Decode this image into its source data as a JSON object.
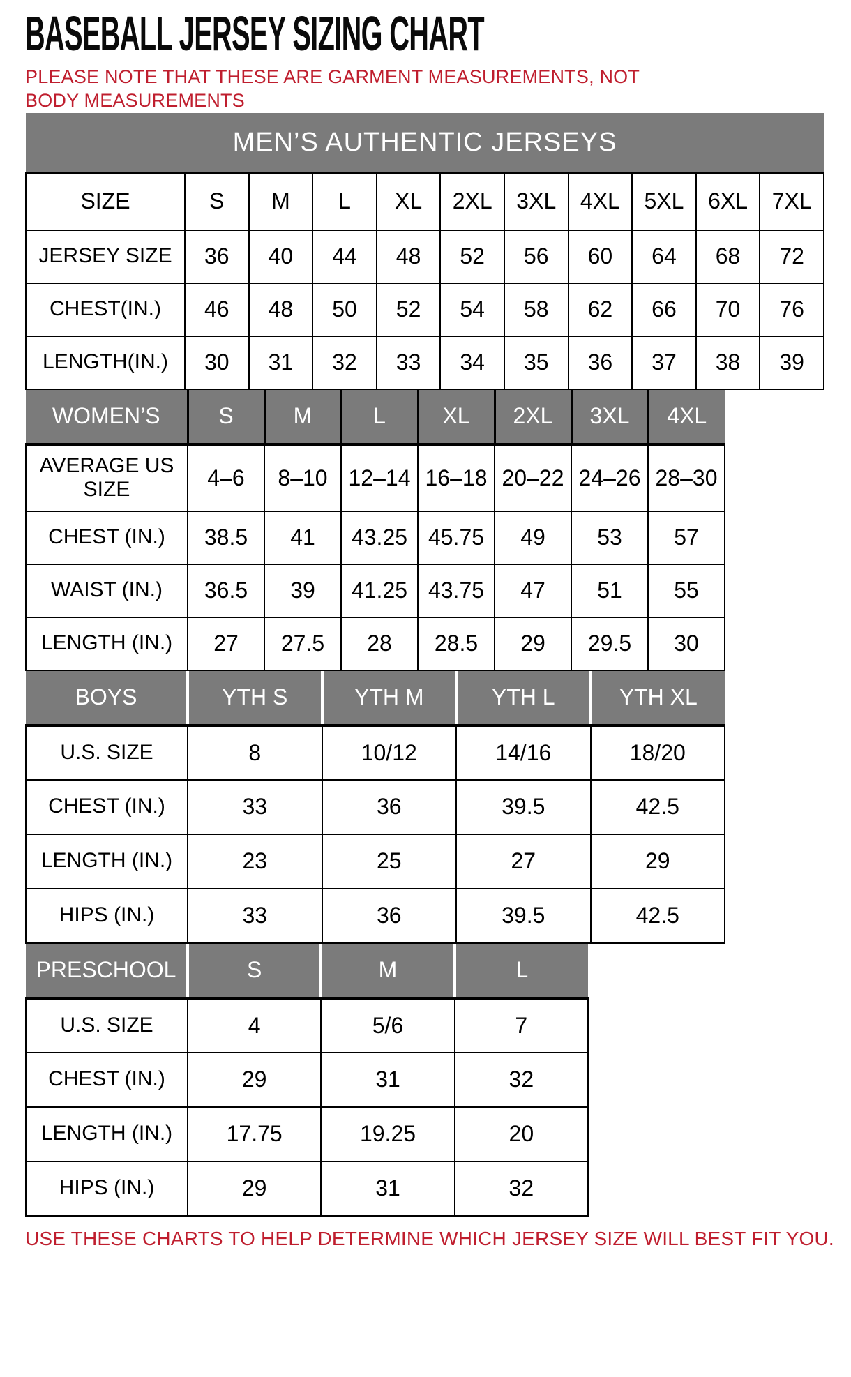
{
  "page": {
    "title": "BASEBALL JERSEY SIZING CHART",
    "note": "PLEASE NOTE THAT THESE ARE GARMENT MEASUREMENTS, NOT BODY MEASUREMENTS",
    "footer": "USE THESE CHARTS TO HELP DETERMINE WHICH JERSEY SIZE WILL BEST FIT YOU.",
    "colors": {
      "accent_red": "#bf1e2e",
      "header_gray": "#7b7b7b",
      "border_black": "#000000"
    }
  },
  "tables": {
    "mens": {
      "banner": "MEN’S AUTHENTIC JERSEYS",
      "header": {
        "label": "SIZE",
        "sizes": [
          "S",
          "M",
          "L",
          "XL",
          "2XL",
          "3XL",
          "4XL",
          "5XL",
          "6XL",
          "7XL"
        ]
      },
      "rows": [
        {
          "label": "JERSEY SIZE",
          "values": [
            "36",
            "40",
            "44",
            "48",
            "52",
            "56",
            "60",
            "64",
            "68",
            "72"
          ]
        },
        {
          "label": "CHEST(IN.)",
          "values": [
            "46",
            "48",
            "50",
            "52",
            "54",
            "58",
            "62",
            "66",
            "70",
            "76"
          ]
        },
        {
          "label": "LENGTH(IN.)",
          "values": [
            "30",
            "31",
            "32",
            "33",
            "34",
            "35",
            "36",
            "37",
            "38",
            "39"
          ]
        }
      ]
    },
    "womens": {
      "header": {
        "label": "WOMEN’S",
        "sizes": [
          "S",
          "M",
          "L",
          "XL",
          "2XL",
          "3XL",
          "4XL"
        ]
      },
      "rows": [
        {
          "label": "AVERAGE US SIZE",
          "values": [
            "4–6",
            "8–10",
            "12–14",
            "16–18",
            "20–22",
            "24–26",
            "28–30"
          ]
        },
        {
          "label": "CHEST (IN.)",
          "values": [
            "38.5",
            "41",
            "43.25",
            "45.75",
            "49",
            "53",
            "57"
          ]
        },
        {
          "label": "WAIST (IN.)",
          "values": [
            "36.5",
            "39",
            "41.25",
            "43.75",
            "47",
            "51",
            "55"
          ]
        },
        {
          "label": "LENGTH (IN.)",
          "values": [
            "27",
            "27.5",
            "28",
            "28.5",
            "29",
            "29.5",
            "30"
          ]
        }
      ]
    },
    "boys": {
      "header": {
        "label": "BOYS",
        "sizes": [
          "YTH S",
          "YTH M",
          "YTH L",
          "YTH XL"
        ]
      },
      "rows": [
        {
          "label": "U.S. SIZE",
          "values": [
            "8",
            "10/12",
            "14/16",
            "18/20"
          ]
        },
        {
          "label": "CHEST (IN.)",
          "values": [
            "33",
            "36",
            "39.5",
            "42.5"
          ]
        },
        {
          "label": "LENGTH (IN.)",
          "values": [
            "23",
            "25",
            "27",
            "29"
          ]
        },
        {
          "label": "HIPS (IN.)",
          "values": [
            "33",
            "36",
            "39.5",
            "42.5"
          ]
        }
      ]
    },
    "preschool": {
      "header": {
        "label": "PRESCHOOL",
        "sizes": [
          "S",
          "M",
          "L"
        ]
      },
      "rows": [
        {
          "label": "U.S. SIZE",
          "values": [
            "4",
            "5/6",
            "7"
          ]
        },
        {
          "label": "CHEST (IN.)",
          "values": [
            "29",
            "31",
            "32"
          ]
        },
        {
          "label": "LENGTH (IN.)",
          "values": [
            "17.75",
            "19.25",
            "20"
          ]
        },
        {
          "label": "HIPS (IN.)",
          "values": [
            "29",
            "31",
            "32"
          ]
        }
      ]
    }
  }
}
